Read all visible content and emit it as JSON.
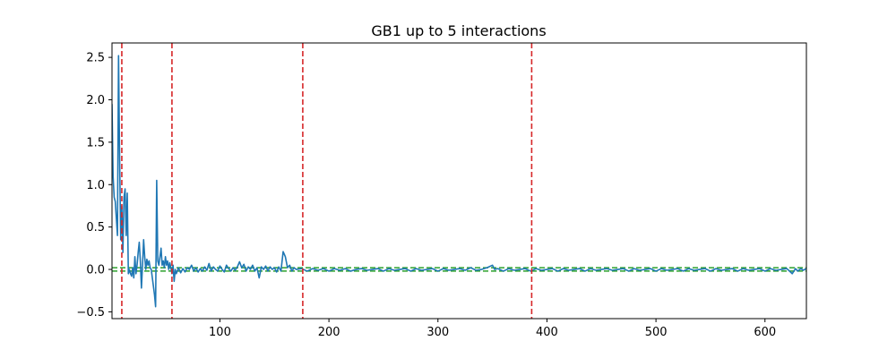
{
  "chart_data": {
    "type": "line",
    "title": "GB1 up to 5 interactions",
    "xlabel": "",
    "ylabel": "",
    "xlim": [
      1,
      638
    ],
    "ylim": [
      -0.58,
      2.67
    ],
    "x_ticks": [
      100,
      200,
      300,
      400,
      500,
      600
    ],
    "y_ticks": [
      -0.5,
      0.0,
      0.5,
      1.0,
      1.5,
      2.0,
      2.5
    ],
    "y_tick_labels": [
      "−0.5",
      "0.0",
      "0.5",
      "1.0",
      "1.5",
      "2.0",
      "2.5"
    ],
    "grid": false,
    "legend": "none",
    "series": [
      {
        "color": "#1f77b4",
        "points": [
          [
            1,
            1.95
          ],
          [
            2,
            1.1
          ],
          [
            3,
            0.85
          ],
          [
            4,
            0.8
          ],
          [
            5,
            0.6
          ],
          [
            6,
            0.4
          ],
          [
            7,
            2.52
          ],
          [
            8,
            1.3
          ],
          [
            9,
            0.35
          ],
          [
            10,
            0.75
          ],
          [
            11,
            0.2
          ],
          [
            12,
            0.85
          ],
          [
            13,
            0.95
          ],
          [
            14,
            0.4
          ],
          [
            15,
            0.9
          ],
          [
            16,
            -0.05
          ],
          [
            17,
            0.0
          ],
          [
            18,
            -0.05
          ],
          [
            19,
            -0.08
          ],
          [
            20,
            0.02
          ],
          [
            21,
            -0.1
          ],
          [
            22,
            0.15
          ],
          [
            23,
            -0.05
          ],
          [
            24,
            0.05
          ],
          [
            25,
            0.2
          ],
          [
            26,
            0.32
          ],
          [
            27,
            0.1
          ],
          [
            28,
            -0.22
          ],
          [
            29,
            0.05
          ],
          [
            30,
            0.35
          ],
          [
            31,
            0.15
          ],
          [
            32,
            0.0
          ],
          [
            33,
            0.12
          ],
          [
            34,
            0.05
          ],
          [
            35,
            0.1
          ],
          [
            36,
            0.02
          ],
          [
            37,
            0.0
          ],
          [
            38,
            -0.1
          ],
          [
            39,
            -0.2
          ],
          [
            40,
            -0.3
          ],
          [
            41,
            -0.44
          ],
          [
            42,
            1.05
          ],
          [
            43,
            0.1
          ],
          [
            44,
            0.05
          ],
          [
            45,
            0.15
          ],
          [
            46,
            0.25
          ],
          [
            47,
            0.05
          ],
          [
            48,
            0.1
          ],
          [
            49,
            0.02
          ],
          [
            50,
            0.15
          ],
          [
            51,
            0.05
          ],
          [
            52,
            0.1
          ],
          [
            53,
            0.0
          ],
          [
            54,
            0.08
          ],
          [
            55,
            0.02
          ],
          [
            56,
            -0.05
          ],
          [
            57,
            0.05
          ],
          [
            58,
            -0.14
          ],
          [
            59,
            0.0
          ],
          [
            60,
            -0.05
          ],
          [
            62,
            0.02
          ],
          [
            64,
            -0.04
          ],
          [
            66,
            0.01
          ],
          [
            68,
            -0.03
          ],
          [
            70,
            0.02
          ],
          [
            72,
            0.0
          ],
          [
            74,
            0.05
          ],
          [
            76,
            -0.02
          ],
          [
            78,
            0.02
          ],
          [
            80,
            -0.03
          ],
          [
            82,
            0.01
          ],
          [
            84,
            -0.02
          ],
          [
            86,
            0.03
          ],
          [
            88,
            -0.01
          ],
          [
            90,
            0.07
          ],
          [
            92,
            -0.02
          ],
          [
            94,
            0.03
          ],
          [
            96,
            0.0
          ],
          [
            98,
            -0.02
          ],
          [
            100,
            0.04
          ],
          [
            102,
            0.0
          ],
          [
            104,
            -0.03
          ],
          [
            106,
            0.05
          ],
          [
            108,
            0.01
          ],
          [
            110,
            -0.02
          ],
          [
            112,
            0.02
          ],
          [
            114,
            -0.01
          ],
          [
            116,
            0.03
          ],
          [
            118,
            0.09
          ],
          [
            120,
            0.02
          ],
          [
            122,
            0.06
          ],
          [
            124,
            -0.02
          ],
          [
            126,
            0.03
          ],
          [
            128,
            0.0
          ],
          [
            130,
            0.05
          ],
          [
            132,
            -0.02
          ],
          [
            134,
            0.02
          ],
          [
            136,
            -0.1
          ],
          [
            138,
            0.03
          ],
          [
            140,
            0.0
          ],
          [
            142,
            0.04
          ],
          [
            144,
            -0.02
          ],
          [
            146,
            0.03
          ],
          [
            148,
            0.0
          ],
          [
            150,
            0.02
          ],
          [
            152,
            -0.03
          ],
          [
            154,
            0.03
          ],
          [
            156,
            -0.02
          ],
          [
            158,
            0.21
          ],
          [
            160,
            0.15
          ],
          [
            162,
            0.02
          ],
          [
            164,
            0.05
          ],
          [
            166,
            -0.02
          ],
          [
            168,
            0.02
          ],
          [
            170,
            0.0
          ],
          [
            175,
            0.01
          ],
          [
            180,
            -0.02
          ],
          [
            185,
            0.01
          ],
          [
            190,
            -0.01
          ],
          [
            195,
            0.01
          ],
          [
            200,
            -0.02
          ],
          [
            205,
            0.01
          ],
          [
            210,
            -0.01
          ],
          [
            215,
            0.01
          ],
          [
            220,
            -0.02
          ],
          [
            225,
            0.0
          ],
          [
            230,
            0.01
          ],
          [
            235,
            -0.01
          ],
          [
            240,
            0.0
          ],
          [
            245,
            0.01
          ],
          [
            250,
            -0.02
          ],
          [
            255,
            0.01
          ],
          [
            260,
            -0.01
          ],
          [
            265,
            0.0
          ],
          [
            270,
            0.01
          ],
          [
            275,
            -0.02
          ],
          [
            280,
            0.01
          ],
          [
            285,
            -0.01
          ],
          [
            290,
            0.0
          ],
          [
            295,
            0.01
          ],
          [
            300,
            -0.02
          ],
          [
            305,
            0.01
          ],
          [
            310,
            -0.01
          ],
          [
            315,
            0.0
          ],
          [
            320,
            0.01
          ],
          [
            325,
            -0.01
          ],
          [
            330,
            0.02
          ],
          [
            335,
            -0.01
          ],
          [
            340,
            0.0
          ],
          [
            345,
            0.02
          ],
          [
            350,
            0.05
          ],
          [
            352,
            0.0
          ],
          [
            355,
            0.01
          ],
          [
            360,
            -0.02
          ],
          [
            365,
            0.01
          ],
          [
            370,
            -0.01
          ],
          [
            375,
            0.0
          ],
          [
            380,
            0.01
          ],
          [
            385,
            -0.02
          ],
          [
            390,
            0.01
          ],
          [
            395,
            -0.01
          ],
          [
            400,
            0.0
          ],
          [
            405,
            0.01
          ],
          [
            410,
            -0.02
          ],
          [
            415,
            0.01
          ],
          [
            420,
            -0.01
          ],
          [
            425,
            0.0
          ],
          [
            430,
            0.01
          ],
          [
            435,
            -0.02
          ],
          [
            440,
            0.01
          ],
          [
            445,
            -0.01
          ],
          [
            450,
            0.0
          ],
          [
            455,
            0.01
          ],
          [
            460,
            -0.01
          ],
          [
            465,
            0.0
          ],
          [
            470,
            0.01
          ],
          [
            475,
            -0.02
          ],
          [
            480,
            0.01
          ],
          [
            485,
            -0.01
          ],
          [
            490,
            0.0
          ],
          [
            495,
            0.01
          ],
          [
            500,
            -0.02
          ],
          [
            505,
            0.01
          ],
          [
            510,
            -0.01
          ],
          [
            515,
            0.0
          ],
          [
            520,
            0.01
          ],
          [
            525,
            -0.02
          ],
          [
            530,
            0.01
          ],
          [
            535,
            -0.01
          ],
          [
            540,
            0.0
          ],
          [
            545,
            0.01
          ],
          [
            550,
            -0.02
          ],
          [
            555,
            0.01
          ],
          [
            560,
            -0.01
          ],
          [
            565,
            0.0
          ],
          [
            570,
            0.01
          ],
          [
            575,
            -0.02
          ],
          [
            580,
            0.01
          ],
          [
            585,
            -0.01
          ],
          [
            590,
            0.0
          ],
          [
            595,
            0.01
          ],
          [
            600,
            -0.02
          ],
          [
            605,
            0.01
          ],
          [
            610,
            -0.01
          ],
          [
            615,
            0.0
          ],
          [
            620,
            0.01
          ],
          [
            625,
            -0.05
          ],
          [
            628,
            0.01
          ],
          [
            630,
            -0.02
          ],
          [
            633,
            0.01
          ],
          [
            635,
            -0.01
          ],
          [
            638,
            0.01
          ]
        ]
      }
    ],
    "vlines": [
      {
        "x": 10,
        "color": "#d62728",
        "style": "dashed"
      },
      {
        "x": 56,
        "color": "#d62728",
        "style": "dashed"
      },
      {
        "x": 176,
        "color": "#d62728",
        "style": "dashed"
      },
      {
        "x": 386,
        "color": "#d62728",
        "style": "dashed"
      }
    ],
    "hlines": [
      {
        "y": 0.02,
        "color": "#2ca02c",
        "style": "dashed"
      },
      {
        "y": -0.02,
        "color": "#2ca02c",
        "style": "dashed"
      }
    ]
  }
}
